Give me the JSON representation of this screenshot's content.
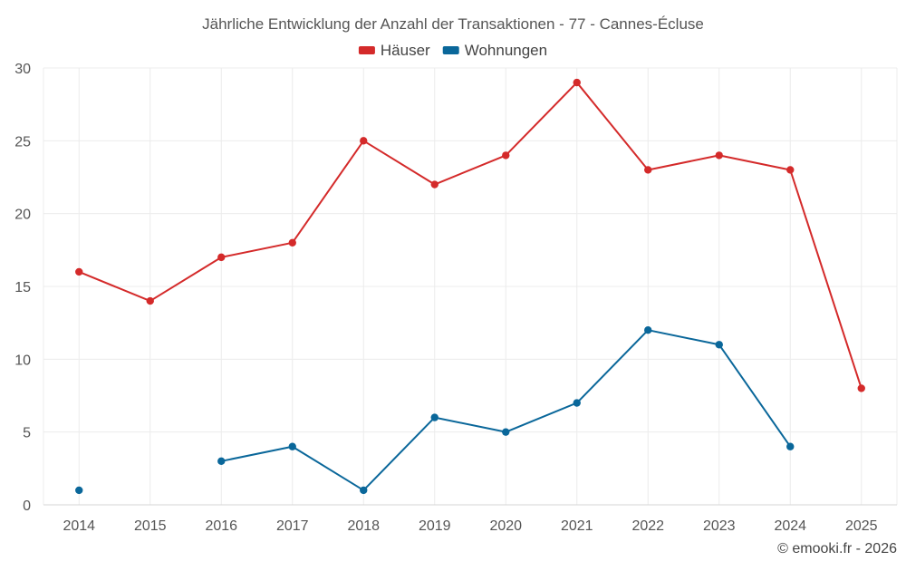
{
  "chart_data": {
    "type": "line",
    "title": "Jährliche Entwicklung der Anzahl der Transaktionen - 77 - Cannes-Écluse",
    "xlabel": "",
    "ylabel": "",
    "categories": [
      "2014",
      "2015",
      "2016",
      "2017",
      "2018",
      "2019",
      "2020",
      "2021",
      "2022",
      "2023",
      "2024",
      "2025"
    ],
    "ylim": [
      0,
      30
    ],
    "yticks": [
      0,
      5,
      10,
      15,
      20,
      25,
      30
    ],
    "grid": true,
    "legend_position": "top-center",
    "series": [
      {
        "name": "Häuser",
        "color": "#d42a2a",
        "values": [
          16,
          14,
          17,
          18,
          25,
          22,
          24,
          29,
          23,
          24,
          23,
          8
        ]
      },
      {
        "name": "Wohnungen",
        "color": "#0a679a",
        "values": [
          1,
          null,
          3,
          4,
          1,
          6,
          5,
          7,
          12,
          11,
          4,
          null
        ]
      }
    ]
  },
  "credit": "© emooki.fr - 2026"
}
